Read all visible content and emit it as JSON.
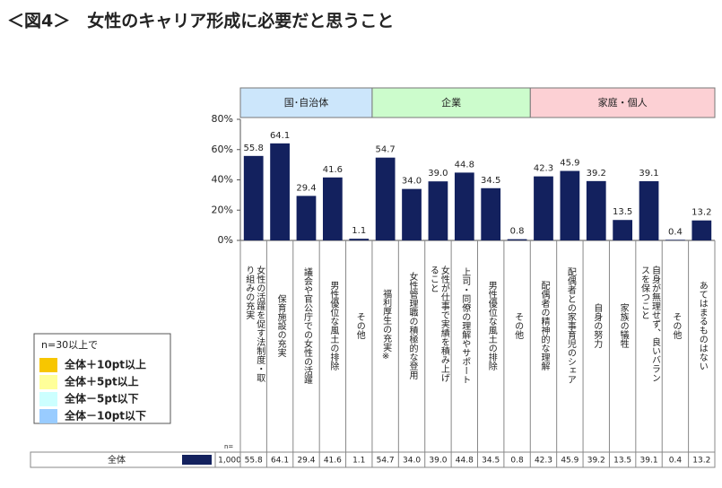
{
  "chart_data": {
    "type": "bar",
    "title": "＜図4＞　女性のキャリア形成に必要だと思うこと",
    "ylim": [
      0,
      80
    ],
    "yticks": [
      {
        "value": 0,
        "label": "0%"
      },
      {
        "value": 20,
        "label": "20%"
      },
      {
        "value": 40,
        "label": "40%"
      },
      {
        "value": 60,
        "label": "60%"
      },
      {
        "value": 80,
        "label": "80%"
      }
    ],
    "color": "#13215e",
    "groups": [
      {
        "name": "国･自治体",
        "color": "#cce6fb",
        "categories": [
          "女性の活躍を促す法制度・取り組みの充実",
          "保育施設の充実",
          "議会や官公庁での女性の活躍",
          "男性優位な風土の排除",
          "その他"
        ],
        "values": [
          55.8,
          64.1,
          29.4,
          41.6,
          1.1
        ],
        "value_labels": [
          "55.8",
          "64.1",
          "29.4",
          "41.6",
          "1.1"
        ]
      },
      {
        "name": "企業",
        "color": "#ccfccc",
        "categories": [
          "福利厚生の充実※",
          "女性管理職の積極的な登用",
          "女性が仕事で実績を積み上げること",
          "上司・同僚の理解やサポート",
          "男性優位な風土の排除",
          "その他"
        ],
        "values": [
          54.7,
          34.0,
          39.0,
          44.8,
          34.5,
          0.8
        ],
        "value_labels": [
          "54.7",
          "34.0",
          "39.0",
          "44.8",
          "34.5",
          "0.8"
        ]
      },
      {
        "name": "家庭・個人",
        "color": "#fcd0d4",
        "categories": [
          "配偶者の精神的な理解",
          "配偶者との家事育児のシェア",
          "自身の努力",
          "家族の犠牲",
          "自身が無理せず、良いバランスを保つこと",
          "その他",
          "あてはまるものはない"
        ],
        "values": [
          42.3,
          45.9,
          39.2,
          13.5,
          39.1,
          0.4,
          13.2
        ],
        "value_labels": [
          "42.3",
          "45.9",
          "39.2",
          "13.5",
          "39.1",
          "0.4",
          "13.2"
        ]
      }
    ],
    "legend": {
      "title": "n=30以上で",
      "items": [
        {
          "label": "全体＋10pt以上",
          "color": "#f7c600"
        },
        {
          "label": "全体＋5pt以上",
          "color": "#ffff99"
        },
        {
          "label": "全体－5pt以下",
          "color": "#ccffff"
        },
        {
          "label": "全体－10pt以下",
          "color": "#99ccff"
        }
      ]
    },
    "table": {
      "row_name": "全体",
      "n_header": "n=",
      "n": "1,000"
    }
  }
}
